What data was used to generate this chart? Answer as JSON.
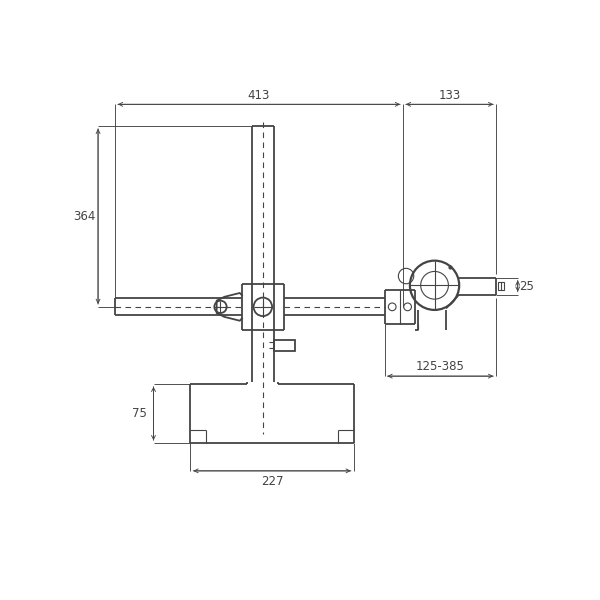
{
  "bg_color": "#ffffff",
  "line_color": "#444444",
  "fig_size": [
    6.0,
    6.0
  ],
  "dpi": 100
}
